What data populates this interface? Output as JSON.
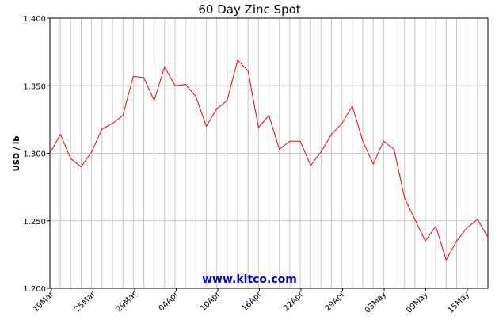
{
  "chart_data": {
    "type": "line",
    "title": "60 Day Zinc Spot",
    "ylabel": "USD / lb",
    "xlabel": "",
    "ylim": [
      1.2,
      1.4
    ],
    "y_ticks": [
      "1.400",
      "1.350",
      "1.300",
      "1.250",
      "1.200"
    ],
    "x_ticks": [
      "19Mar",
      "25Mar",
      "29Mar",
      "04Apr",
      "10Apr",
      "16Apr",
      "22Apr",
      "29Apr",
      "03May",
      "09May",
      "15May"
    ],
    "grid": true,
    "line_color": "#ff0000",
    "watermark": "www.kitco.com",
    "series": [
      {
        "values": [
          1.3,
          1.314,
          1.296,
          1.29,
          1.301,
          1.318,
          1.322,
          1.328,
          1.357,
          1.356,
          1.339,
          1.364,
          1.35,
          1.351,
          1.342,
          1.32,
          1.333,
          1.339,
          1.369,
          1.361,
          1.319,
          1.328,
          1.303,
          1.309,
          1.309,
          1.291,
          1.301,
          1.314,
          1.322,
          1.335,
          1.309,
          1.292,
          1.309,
          1.303,
          1.267,
          1.251,
          1.235,
          1.246,
          1.221,
          1.235,
          1.245,
          1.251,
          1.238
        ]
      }
    ]
  }
}
